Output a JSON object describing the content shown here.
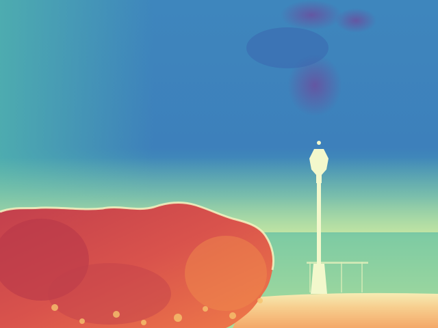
{
  "image": {
    "description_kind": "depth-map",
    "palette": {
      "far_deep": "#3b6fb3",
      "far_mid": "#3e86bd",
      "far_purple": "#6a4f9e",
      "mid_teal": "#4aa8b0",
      "mid_green": "#7cc8a2",
      "near_light": "#f2f7c4",
      "hedge_dark": "#b23a4a",
      "hedge_mid": "#d9574f",
      "hedge_orange": "#f07a4a",
      "ground_peach": "#f6c98a",
      "lamp": "#f3f8cc"
    }
  }
}
